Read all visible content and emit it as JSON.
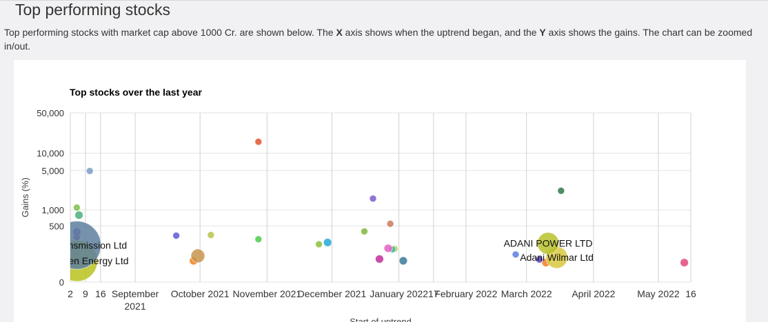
{
  "header": {
    "title": "Top performing stocks"
  },
  "description": {
    "parts": [
      "Top performing stocks with market cap above 1000 Cr. are shown below. The ",
      "X",
      " axis shows when the uptrend began, and the ",
      "Y",
      " axis shows the gains. The chart can be zoomed in/out."
    ]
  },
  "chart_data": {
    "type": "bubble",
    "title": "Top stocks over the last year",
    "x_label": "Start of uptrend",
    "y_label": "Gains (%)",
    "xlim": [
      "2021-08-02",
      "2022-05-16"
    ],
    "ylim": [
      0,
      50000
    ],
    "xticks": [
      {
        "value": "2021-08-02",
        "label": "2"
      },
      {
        "value": "2021-08-09",
        "label": "9"
      },
      {
        "value": "2021-08-16",
        "label": "16"
      },
      {
        "value": "2021-09-01",
        "label": "September 2021"
      },
      {
        "value": "2021-10-01",
        "label": "October 2021"
      },
      {
        "value": "2021-11-01",
        "label": "November 2021"
      },
      {
        "value": "2021-12-01",
        "label": "December 2021"
      },
      {
        "value": "2022-01-01",
        "label": "January 2022"
      },
      {
        "value": "2022-01-17",
        "label": "17"
      },
      {
        "value": "2022-02-01",
        "label": "February 2022"
      },
      {
        "value": "2022-03-01",
        "label": "March 2022"
      },
      {
        "value": "2022-04-01",
        "label": "April 2022"
      },
      {
        "value": "2022-05-01",
        "label": "May 2022"
      },
      {
        "value": "2022-05-16",
        "label": "16"
      }
    ],
    "yticks": [
      0,
      500,
      {
        "value": 1000,
        "label": "1,000"
      },
      {
        "value": 5000,
        "label": "5,000"
      },
      {
        "value": 10000,
        "label": "10,000"
      },
      {
        "value": 50000,
        "label": "50,000"
      }
    ],
    "y_scale": "log",
    "grid": true,
    "series": [
      {
        "x": [
          "2021-08-05",
          "2021-08-05",
          "2021-08-11",
          "2021-08-05",
          "2021-08-06",
          "2021-08-05",
          "2021-08-05",
          "2021-08-05",
          "2021-08-05",
          "2021-08-05",
          "2021-08-05",
          "2021-09-20",
          "2021-09-30",
          "2021-09-28",
          "2021-10-06",
          "2021-10-28",
          "2021-10-28",
          "2021-11-25",
          "2021-11-29",
          "2021-12-16",
          "2021-12-20",
          "2021-12-28",
          "2021-12-23",
          "2021-12-27",
          "2021-12-29",
          "2021-12-30",
          "2022-01-03",
          "2022-02-24",
          "2022-03-11",
          "2022-03-15",
          "2022-03-07",
          "2022-03-10",
          "2022-03-17",
          "2022-05-13"
        ],
        "values": [
          200,
          80,
          4900,
          1100,
          800,
          380,
          300,
          190,
          130,
          100,
          75,
          320,
          110,
          80,
          330,
          15800,
          270,
          210,
          230,
          390,
          1600,
          550,
          90,
          170,
          160,
          165,
          80,
          120,
          220,
          100,
          87,
          70,
          2200,
          70
        ],
        "sizes": [
          49,
          36,
          1,
          1,
          1.4,
          1.4,
          1,
          1,
          1,
          1,
          1,
          1,
          4,
          1.4,
          1,
          1,
          1,
          1,
          1.4,
          1,
          1,
          1,
          1.4,
          1.4,
          1,
          1,
          1.4,
          1,
          10,
          10,
          1,
          1.4,
          1,
          1.4
        ],
        "colors": [
          "#5e7f9e",
          "#b9c31c",
          "#7b9bc8",
          "#7cbf4a",
          "#4caf7d",
          "#6b4fc8",
          "#6a2c8a",
          "#2eaa9a",
          "#e86fb0",
          "#7fb8e0",
          "#c82a3a",
          "#5b5bd6",
          "#c8964e",
          "#f07f1a",
          "#b8c24a",
          "#e0532f",
          "#4ccc4c",
          "#8cbf3a",
          "#27a9d8",
          "#7cb83a",
          "#7b5ccf",
          "#c87a5e",
          "#c22d9a",
          "#e85fc2",
          "#4cb8a0",
          "#b8d04a",
          "#3a7a99",
          "#5b7ee0",
          "#b8c22e",
          "#d8c840",
          "#5a3ec8",
          "#f08020",
          "#2e7a4a",
          "#e04a7a"
        ],
        "labels": [
          "Adani Transmission Ltd",
          "Adani Green Energy Ltd",
          null,
          null,
          null,
          null,
          null,
          null,
          null,
          null,
          null,
          null,
          null,
          null,
          null,
          null,
          null,
          null,
          null,
          null,
          null,
          null,
          null,
          null,
          null,
          null,
          null,
          null,
          "ADANI POWER LTD",
          "Adani Wilmar Ltd",
          null,
          null,
          null,
          null
        ]
      }
    ]
  }
}
